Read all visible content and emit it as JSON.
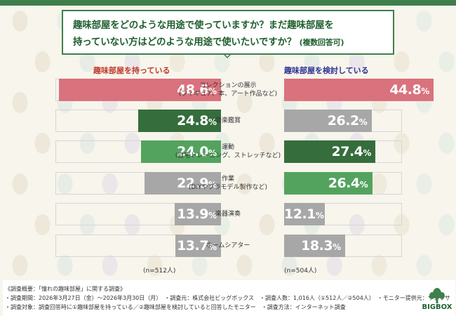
{
  "title": {
    "line1": "趣味部屋をどのような用途で使っていますか？まだ趣味部屋を",
    "line2": "持っていない方はどのような用途で使いたいですか？",
    "line2_note": "(複数回答可)"
  },
  "chart_data": {
    "type": "bar",
    "orientation": "horizontal-butterfly",
    "categories": [
      "コレクションの展示\n(フィギュア、本、アート作品など)",
      "音楽鑑賞",
      "運動\n(自宅トレーニング、ストレッチなど)",
      "作業\n(DIYやプラモデル製作など)",
      "楽器演奏",
      "ホームシアター"
    ],
    "series": [
      {
        "name": "趣味部屋を持っている",
        "n": "(n=512人)",
        "values": [
          48.6,
          24.8,
          24.0,
          22.9,
          13.9,
          13.7
        ]
      },
      {
        "name": "趣味部屋を検討している",
        "n": "(n=504人)",
        "values": [
          44.8,
          26.2,
          27.4,
          26.4,
          12.1,
          18.3
        ]
      }
    ],
    "unit": "%",
    "xlim": [
      0,
      50
    ],
    "colors": {
      "rank1": "#d9727c",
      "rank2": "#356d3c",
      "rank3": "#53a35e",
      "other": "#a7a7a7",
      "header_left": "#c0392b",
      "header_right": "#2e3192"
    }
  },
  "footer": {
    "line1": "《調査概要：「憧れの趣味部屋」に関する調査》",
    "line2": "・調査期間：2026年3月27日（金）〜2026年3月30日（月）　・調査元：株式会社ビッグボックス　・調査人数：1,016人（①512人／②504人）　・モニター提供元：サクリサ",
    "line3": "・調査対象：調査回答時に①趣味部屋を持っている／②趣味部屋を検討していると回答したモニター　・調査方法：インターネット調査"
  },
  "logo": {
    "text": "BIGBOX",
    "icon": "tree-icon"
  }
}
